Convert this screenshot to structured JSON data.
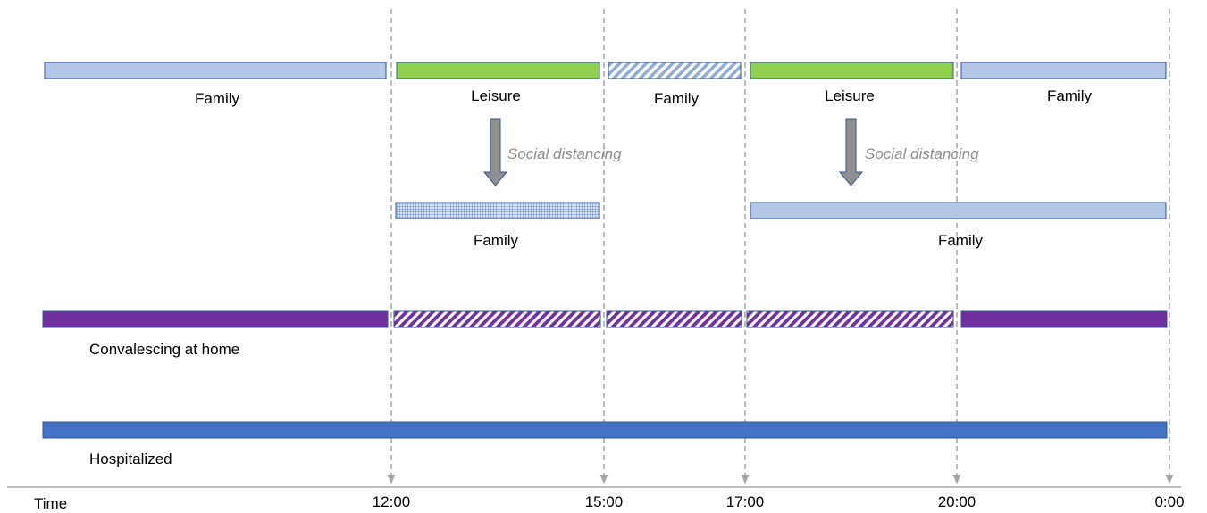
{
  "axis": {
    "label": "Time",
    "ticks": [
      "12:00",
      "15:00",
      "17:00",
      "20:00",
      "0:00"
    ]
  },
  "rows": {
    "normal_day": {
      "labels": [
        "Family",
        "Leisure",
        "Family",
        "Leisure",
        "Family"
      ]
    },
    "social_distancing": {
      "annotation_1": "Social distancing",
      "annotation_2": "Social distancing",
      "labels": [
        "Family",
        "Family"
      ]
    },
    "convalescing": {
      "label": "Convalescing at home"
    },
    "hospitalized": {
      "label": "Hospitalized"
    }
  },
  "colors": {
    "family": "#b4c7e7",
    "family_border": "#2f5597",
    "leisure": "#92d050",
    "convalescing": "#7030a0",
    "hospitalized": "#4472c4",
    "arrow": "#909090",
    "dashed_line": "#a6a6a6",
    "note_text": "#8c8c8c"
  }
}
